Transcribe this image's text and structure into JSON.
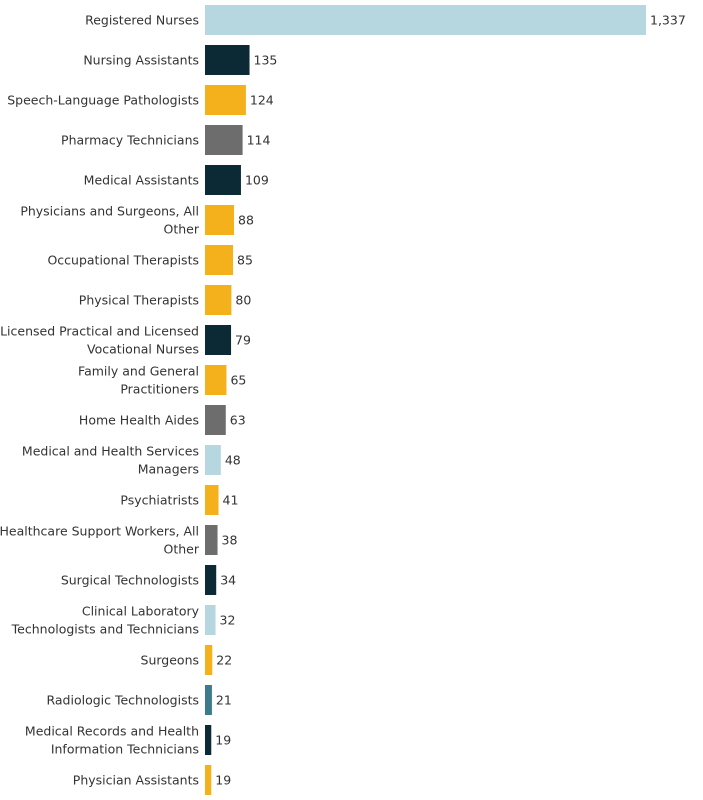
{
  "chart_data": {
    "type": "bar",
    "orientation": "horizontal",
    "categories": [
      "Registered Nurses",
      "Nursing Assistants",
      "Speech-Language Pathologists",
      "Pharmacy Technicians",
      "Medical Assistants",
      "Physicians and Surgeons, All Other",
      "Occupational Therapists",
      "Physical Therapists",
      "Licensed Practical and Licensed Vocational Nurses",
      "Family and General Practitioners",
      "Home Health Aides",
      "Medical and Health Services Managers",
      "Psychiatrists",
      "Healthcare Support Workers, All Other",
      "Surgical Technologists",
      "Clinical Laboratory Technologists and Technicians",
      "Surgeons",
      "Radiologic Technologists",
      "Medical Records and Health Information Technicians",
      "Physician Assistants"
    ],
    "category_lines": [
      [
        "Registered Nurses"
      ],
      [
        "Nursing Assistants"
      ],
      [
        "Speech-Language Pathologists"
      ],
      [
        "Pharmacy Technicians"
      ],
      [
        "Medical Assistants"
      ],
      [
        "Physicians and Surgeons, All",
        "Other"
      ],
      [
        "Occupational Therapists"
      ],
      [
        "Physical Therapists"
      ],
      [
        "Licensed Practical and Licensed",
        "Vocational Nurses"
      ],
      [
        "Family and General",
        "Practitioners"
      ],
      [
        "Home Health Aides"
      ],
      [
        "Medical and Health Services",
        "Managers"
      ],
      [
        "Psychiatrists"
      ],
      [
        "Healthcare Support Workers, All",
        "Other"
      ],
      [
        "Surgical Technologists"
      ],
      [
        "Clinical Laboratory",
        "Technologists and Technicians"
      ],
      [
        "Surgeons"
      ],
      [
        "Radiologic Technologists"
      ],
      [
        "Medical Records and Health",
        "Information Technicians"
      ],
      [
        "Physician Assistants"
      ]
    ],
    "values": [
      1337,
      135,
      124,
      114,
      109,
      88,
      85,
      80,
      79,
      65,
      63,
      48,
      41,
      38,
      34,
      32,
      22,
      21,
      19,
      19
    ],
    "value_labels": [
      "1,337",
      "135",
      "124",
      "114",
      "109",
      "88",
      "85",
      "80",
      "79",
      "65",
      "63",
      "48",
      "41",
      "38",
      "34",
      "32",
      "22",
      "21",
      "19",
      "19"
    ],
    "bar_colors": [
      "#b6d7df",
      "#0b2a36",
      "#f4b11c",
      "#6d6d6d",
      "#0b2a36",
      "#f4b11c",
      "#f4b11c",
      "#f4b11c",
      "#0b2a36",
      "#f4b11c",
      "#6d6d6d",
      "#b6d7df",
      "#f4b11c",
      "#6d6d6d",
      "#0b2a36",
      "#b6d7df",
      "#f4b11c",
      "#3d7b8c",
      "#0b2a36",
      "#f4b11c"
    ],
    "xlim": [
      0,
      1337
    ],
    "grid": false,
    "legend": "none"
  }
}
